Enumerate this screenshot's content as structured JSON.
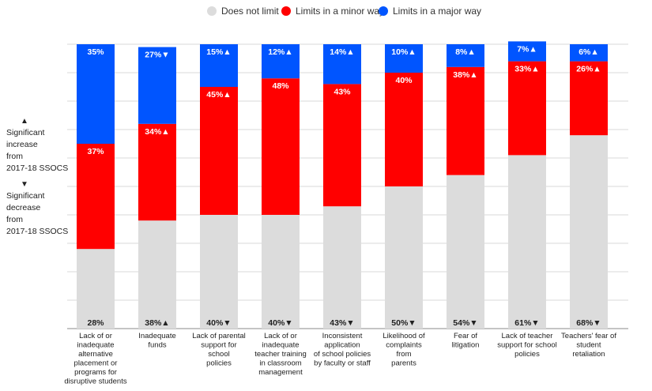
{
  "legend": {
    "items": [
      {
        "label": "Does not limit",
        "color": "#dcdcdc"
      },
      {
        "label": "Limits in a minor way",
        "color": "#ff0000"
      },
      {
        "label": "Limits in a major way",
        "color": "#0055ff"
      }
    ]
  },
  "notes": {
    "up_symbol": "▲",
    "up_text": [
      "Significant",
      "increase",
      "from",
      "2017-18 SSOCS"
    ],
    "down_symbol": "▼",
    "down_text": [
      "Significant",
      "decrease",
      "from",
      "2017-18 SSOCS"
    ]
  },
  "chart_data": {
    "type": "bar",
    "stacked": true,
    "ylim": [
      0,
      100
    ],
    "grid": true,
    "legend_position": "top-center",
    "categories": [
      [
        "Lack of or",
        "inadequate",
        "alternative",
        "placement or",
        "programs for",
        "disruptive students"
      ],
      [
        "Inadequate",
        "funds"
      ],
      [
        "Lack of parental",
        "support for",
        "school",
        "policies"
      ],
      [
        "Lack of or",
        "inadequate",
        "teacher training",
        "in classroom",
        "management"
      ],
      [
        "Inconsistent",
        "application",
        "of school policies",
        "by faculty or staff"
      ],
      [
        "Likelihood of",
        "complaints",
        "from",
        "parents"
      ],
      [
        "Fear of",
        "litigation"
      ],
      [
        "Lack of teacher",
        "support for school",
        "policies"
      ],
      [
        "Teachers' fear of",
        "student",
        "retaliation"
      ]
    ],
    "series": [
      {
        "name": "Does not limit",
        "color": "#dcdcdc",
        "values": [
          28,
          38,
          40,
          40,
          43,
          50,
          54,
          61,
          68
        ],
        "labels": [
          "28%",
          "38%",
          "40%",
          "40%",
          "43%",
          "50%",
          "54%",
          "61%",
          "68%"
        ],
        "marks": [
          "",
          "▲",
          "▼",
          "▼",
          "▼",
          "▼",
          "▼",
          "▼",
          "▼"
        ]
      },
      {
        "name": "Limits in a minor way",
        "color": "#ff0000",
        "values": [
          37,
          34,
          45,
          48,
          43,
          40,
          38,
          33,
          26
        ],
        "labels": [
          "37%",
          "34%",
          "45%",
          "48%",
          "43%",
          "40%",
          "38%",
          "33%",
          "26%"
        ],
        "marks": [
          "",
          "▲",
          "▲",
          "",
          "",
          "",
          "▲",
          "▲",
          "▲"
        ]
      },
      {
        "name": "Limits in a major way",
        "color": "#0055ff",
        "values": [
          35,
          27,
          15,
          12,
          14,
          10,
          8,
          7,
          6
        ],
        "labels": [
          "35%",
          "27%",
          "15%",
          "12%",
          "14%",
          "10%",
          "8%",
          "7%",
          "6%"
        ],
        "marks": [
          "",
          "▼",
          "▲",
          "▲",
          "▲",
          "▲",
          "▲",
          "▲",
          "▲"
        ]
      }
    ]
  }
}
